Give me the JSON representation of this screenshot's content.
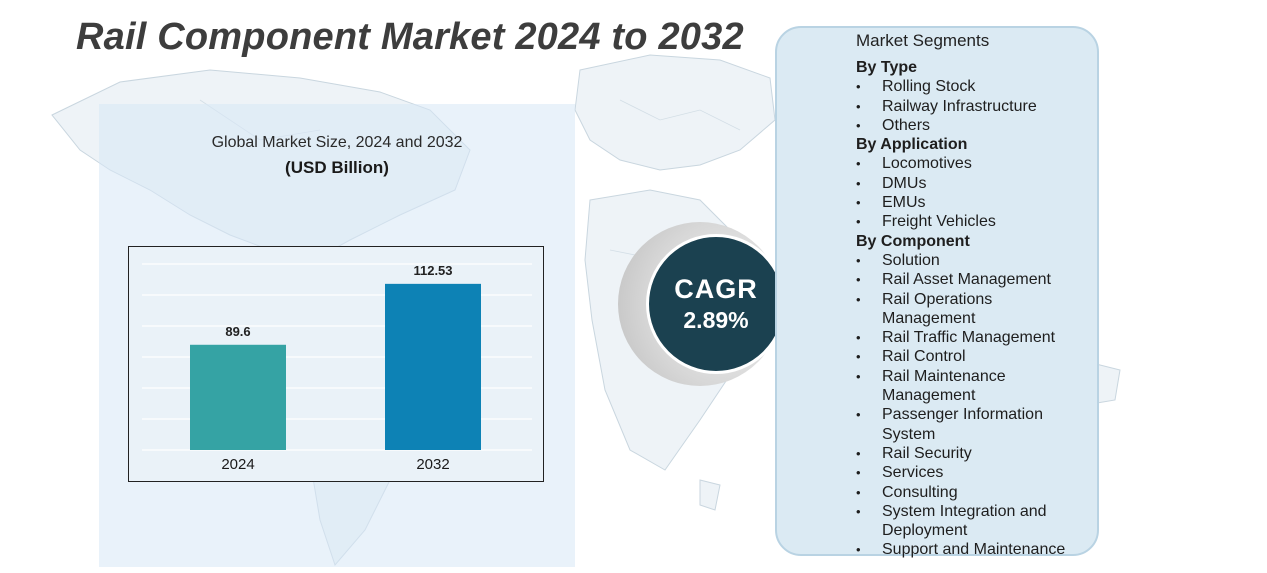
{
  "title": "Rail Component Market 2024 to 2032",
  "chart": {
    "heading": "Global Market Size, 2024 and 2032",
    "unit": "(USD Billion)"
  },
  "chart_data": {
    "type": "bar",
    "title": "Global Market Size, 2024 and 2032",
    "ylabel": "(USD Billion)",
    "categories": [
      "2024",
      "2032"
    ],
    "values": [
      89.6,
      112.53
    ],
    "value_labels": [
      "89.6",
      "112.53"
    ],
    "ylim": [
      50,
      120
    ],
    "grid": true,
    "colors": [
      "#35a3a4",
      "#0d82b5"
    ]
  },
  "cagr": {
    "label": "CAGR",
    "value": "2.89%"
  },
  "segments": {
    "title": "Market Segments",
    "groups": [
      {
        "title": "By Type",
        "items": [
          "Rolling Stock",
          "Railway Infrastructure",
          "Others"
        ]
      },
      {
        "title": "By Application",
        "items": [
          "Locomotives",
          "DMUs",
          "EMUs",
          "Freight Vehicles"
        ]
      },
      {
        "title": "By Component",
        "items": [
          "Solution",
          "Rail Asset Management",
          "Rail Operations\nManagement",
          "Rail Traffic Management",
          "Rail Control",
          "Rail Maintenance\nManagement",
          "Passenger Information\nSystem",
          "Rail Security",
          "Services",
          "Consulting",
          "System Integration and\nDeployment",
          "Support and Maintenance"
        ]
      }
    ]
  },
  "colors": {
    "cagr_circle": "#1b4150",
    "panel_bg": "#dbeaf3",
    "bar_2024": "#35a3a4",
    "bar_2032": "#0d82b5"
  }
}
